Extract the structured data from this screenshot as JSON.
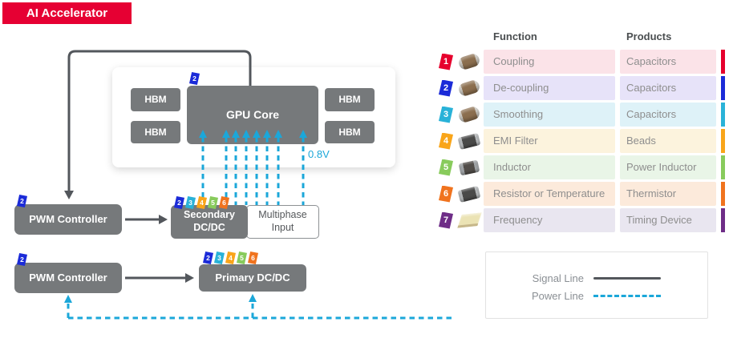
{
  "banner": {
    "label": "AI Accelerator"
  },
  "colors": {
    "brand_red": "#E60033",
    "block_gray": "#76797B",
    "signal_line": "#53575C",
    "power_line": "#1BA7D9"
  },
  "badge_colors": {
    "1": "#E6002D",
    "2": "#1B2BD8",
    "3": "#29B2D8",
    "4": "#F9A51A",
    "5": "#88CB5C",
    "6": "#F0731E",
    "7": "#6E2D87"
  },
  "diagram": {
    "hbm_label": "HBM",
    "gpu_label": "GPU Core",
    "gpu_badge": "2",
    "voltage_label": "0.8V",
    "pwm_label": "PWM Controller",
    "pwm_badge": "2",
    "secondary_label": "Secondary DC/DC",
    "multiphase_label": "Multiphase Input",
    "primary_label": "Primary DC/DC",
    "dcdc_badges": [
      "2",
      "3",
      "4",
      "5",
      "6"
    ]
  },
  "table": {
    "headers": {
      "function": "Function",
      "products": "Products"
    },
    "rows": [
      {
        "num": "1",
        "function": "Coupling",
        "product": "Capacitors",
        "component": "capacitor",
        "row_bg": "#FBE3E8",
        "bar": "#E6002D"
      },
      {
        "num": "2",
        "function": "De-coupling",
        "product": "Capacitors",
        "component": "capacitor",
        "row_bg": "#E7E3F9",
        "bar": "#1B2BD8"
      },
      {
        "num": "3",
        "function": "Smoothing",
        "product": "Capacitors",
        "component": "capacitor",
        "row_bg": "#DEF2F8",
        "bar": "#29B2D8"
      },
      {
        "num": "4",
        "function": "EMI Filter",
        "product": "Beads",
        "component": "bead",
        "row_bg": "#FCF3DD",
        "bar": "#F9A51A"
      },
      {
        "num": "5",
        "function": "Inductor",
        "product": "Power Inductor",
        "component": "inductor",
        "row_bg": "#E9F5E7",
        "bar": "#88CB5C"
      },
      {
        "num": "6",
        "function": "Resistor or Temperature",
        "product": "Thermistor",
        "component": "thermistor",
        "row_bg": "#FCEADB",
        "bar": "#F0731E"
      },
      {
        "num": "7",
        "function": "Frequency",
        "product": "Timing Device",
        "component": "timing",
        "row_bg": "#E9E6F0",
        "bar": "#6E2D87"
      }
    ]
  },
  "legend": {
    "signal_label": "Signal Line",
    "power_label": "Power Line"
  }
}
